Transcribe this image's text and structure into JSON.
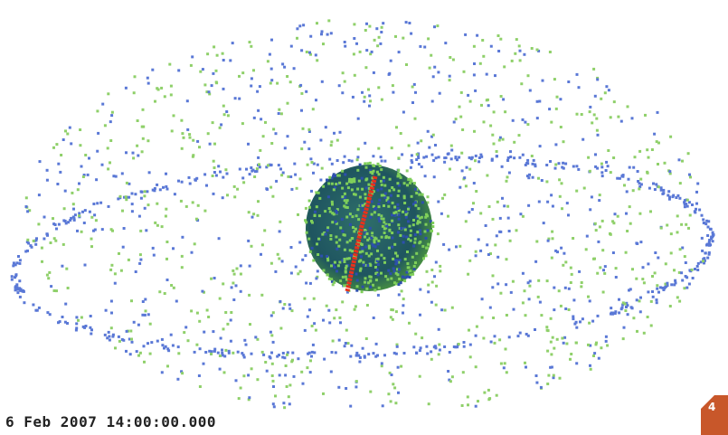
{
  "timestamp": "6 Feb 2007 14:00:00.000",
  "badge": "4"
}
